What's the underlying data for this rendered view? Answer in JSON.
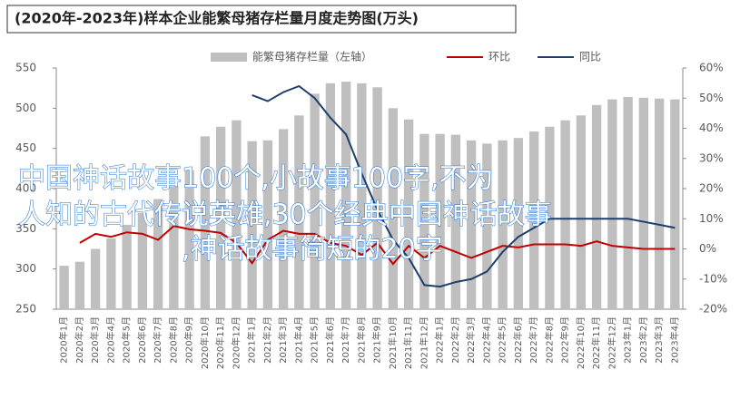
{
  "chart_data": {
    "type": "bar_line",
    "title": "(2020年-2023年)样本企业能繁母猪存栏量月度走势图(万头)",
    "categories": [
      "2020年1月",
      "2020年2月",
      "2020年3月",
      "2020年4月",
      "2020年5月",
      "2020年6月",
      "2020年7月",
      "2020年8月",
      "2020年9月",
      "2020年10月",
      "2020年11月",
      "2020年12月",
      "2021年1月",
      "2021年2月",
      "2021年3月",
      "2021年4月",
      "2021年5月",
      "2021年6月",
      "2021年7月",
      "2021年8月",
      "2021年9月",
      "2021年10月",
      "2021年11月",
      "2021年12月",
      "2022年1月",
      "2022年2月",
      "2022年3月",
      "2022年4月",
      "2022年5月",
      "2022年6月",
      "2022年7月",
      "2022年8月",
      "2022年9月",
      "2022年10月",
      "2022年11月",
      "2022年12月",
      "2023年1月",
      "2023年2月",
      "2023年3月",
      "2023年4月"
    ],
    "series": [
      {
        "name": "能繁母猪存栏量（左轴）",
        "color": "#bfbfbf",
        "axis": "y",
        "values": [
          304,
          309,
          325,
          338,
          355,
          370,
          387,
          403,
          423,
          465,
          477,
          485,
          459,
          460,
          474,
          491,
          518,
          531,
          533,
          531,
          526,
          500,
          486,
          468,
          468,
          467,
          460,
          456,
          460,
          463,
          471,
          477,
          485,
          491,
          504,
          511,
          514,
          513,
          512,
          511
        ]
      },
      {
        "name": "环比",
        "color": "#c00000",
        "axis": "y2",
        "values": [
          null,
          2,
          5,
          4,
          5.5,
          5,
          3,
          7.6,
          6.5,
          6,
          5.3,
          2,
          -4.7,
          3,
          6,
          5,
          5,
          2,
          1,
          -2,
          2,
          -5,
          1,
          -3,
          1,
          -1,
          -3,
          -1,
          1,
          0.5,
          1.5,
          1.5,
          1.5,
          1,
          2.5,
          1,
          0.5,
          0,
          0,
          0
        ]
      },
      {
        "name": "同比",
        "color": "#1f3e6e",
        "axis": "y2",
        "values": [
          null,
          null,
          null,
          null,
          null,
          null,
          null,
          null,
          null,
          null,
          null,
          null,
          51,
          49,
          52,
          54,
          50,
          43.5,
          38,
          25,
          13,
          3,
          -3,
          -12,
          -12.5,
          -11,
          -10,
          -7.5,
          -1,
          4,
          7,
          10,
          10,
          10,
          10,
          10,
          10,
          9,
          8,
          7
        ]
      }
    ],
    "ylim": [
      250,
      550
    ],
    "yticks": [
      250,
      300,
      350,
      400,
      450,
      500,
      550
    ],
    "y2lim": [
      -20,
      60
    ],
    "y2ticks": [
      {
        "value": -20,
        "label": "-20%"
      },
      {
        "value": -10,
        "label": "-10%"
      },
      {
        "value": 0,
        "label": "0%"
      },
      {
        "value": 10,
        "label": "10%"
      },
      {
        "value": 20,
        "label": "20%"
      },
      {
        "value": 30,
        "label": "30%"
      },
      {
        "value": 40,
        "label": "40%"
      },
      {
        "value": 50,
        "label": "50%"
      },
      {
        "value": 60,
        "label": "60%"
      }
    ],
    "legend": "top",
    "annotations": [
      "中国神话故事100个,小故事100字,不为",
      "人知的古代传说英雄,30个经典中国神话故事",
      ",神话故事简短的20字"
    ]
  }
}
